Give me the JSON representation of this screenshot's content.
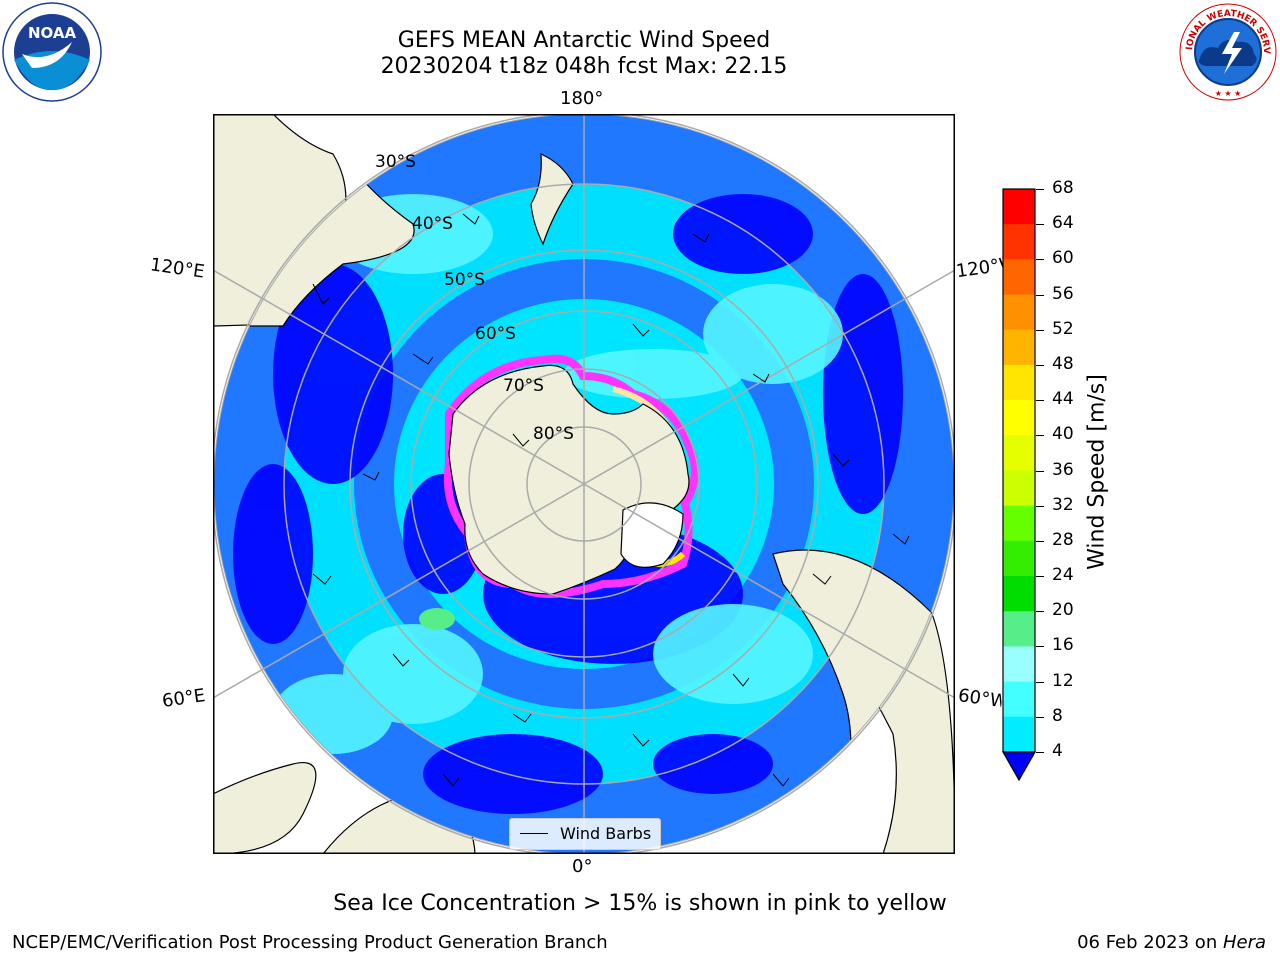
{
  "title": {
    "line1": "GEFS MEAN Antarctic Wind Speed",
    "line2": "20230204 t18z 048h fcst   Max: 22.15"
  },
  "logos": {
    "noaa_text": "NOAA",
    "nws_text": "NATIONAL WEATHER SERVICE"
  },
  "map": {
    "longitude_labels": {
      "top": "180°",
      "bottom": "0°",
      "left_upper": "120°E",
      "left_lower": "60°E",
      "right_upper": "120°W",
      "right_lower": "60°W"
    },
    "latitude_labels": [
      "30°S",
      "40°S",
      "50°S",
      "60°S",
      "70°S",
      "80°S"
    ],
    "legend_label": "Wind Barbs",
    "colors": {
      "land": "#efefdc",
      "ocean_dark": "#0000ff",
      "ocean_mid": "#1f78ff",
      "ocean_light": "#00e5ff",
      "ocean_pale": "#55f6ff",
      "sea_ice": "#ff33ff"
    }
  },
  "colorbar": {
    "label": "Wind Speed [m/s]",
    "ticks": [
      "68",
      "64",
      "60",
      "56",
      "52",
      "48",
      "44",
      "40",
      "36",
      "32",
      "28",
      "24",
      "20",
      "16",
      "12",
      "8",
      "4"
    ],
    "colors": [
      "#ff0000",
      "#ff3300",
      "#ff6600",
      "#ff9000",
      "#ffb400",
      "#ffe600",
      "#ffff00",
      "#e6ff00",
      "#ccff00",
      "#66ff00",
      "#33ee00",
      "#00dd00",
      "#55ee88",
      "#99ffff",
      "#44ffff",
      "#00eeff",
      "#0080ff"
    ],
    "extend_color": "#0000ff"
  },
  "caption": "Sea Ice Concentration > 15% is shown in pink to yellow",
  "footer": {
    "left": "NCEP/EMC/Verification Post Processing Product Generation Branch",
    "right_date": "06 Feb 2023 on ",
    "right_host": "Hera"
  }
}
